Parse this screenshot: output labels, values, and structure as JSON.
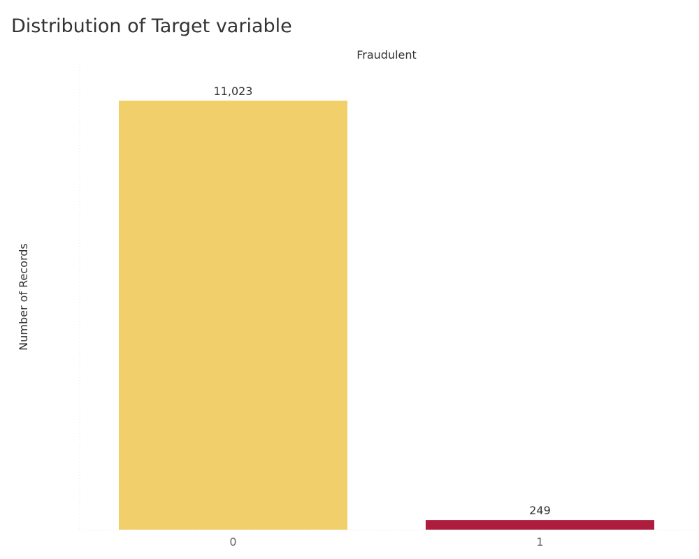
{
  "chart_data": {
    "type": "bar",
    "title": "Distribution of Target variable",
    "column_header": "Fraudulent",
    "xlabel": "",
    "ylabel": "Number of Records",
    "categories": [
      "0",
      "1"
    ],
    "values": [
      11023,
      249
    ],
    "data_labels": [
      "11,023",
      "249"
    ],
    "colors": [
      "#F1CF6A",
      "#AE1C3E"
    ],
    "ylim": [
      0,
      12000
    ],
    "grid": false,
    "legend": "none"
  }
}
